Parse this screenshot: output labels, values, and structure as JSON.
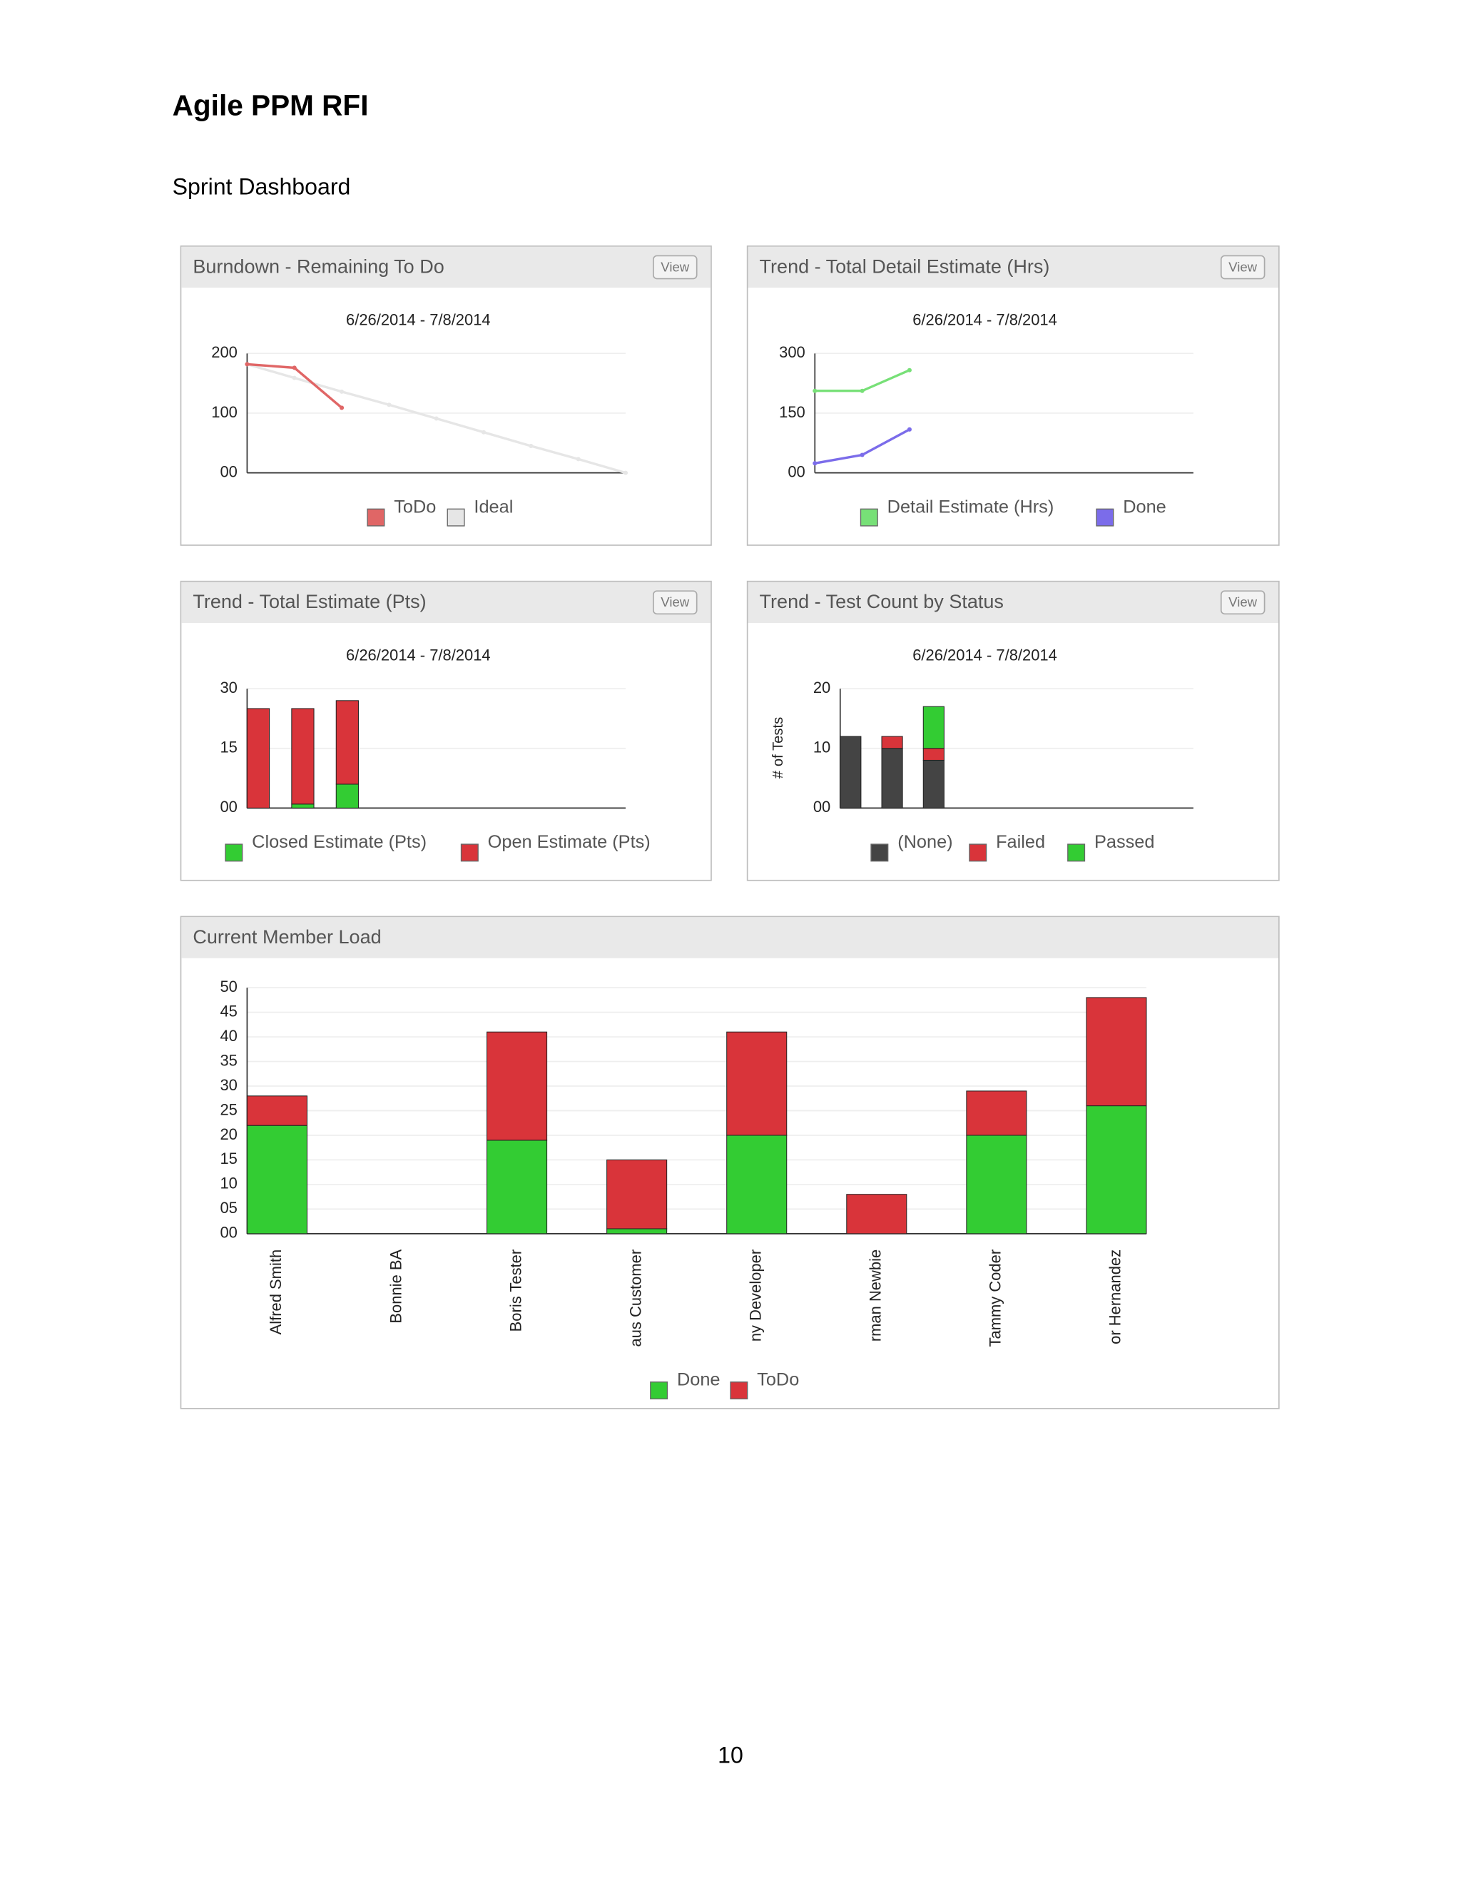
{
  "header": {
    "title": "Agile PPM RFI",
    "subtitle": "Sprint Dashboard"
  },
  "footer": {
    "page_number": "10"
  },
  "chart_data": [
    {
      "type": "line",
      "title": "Burndown - Remaining To Do",
      "button": "View",
      "subtitle": "6/26/2014 - 7/8/2014",
      "categories": [
        null,
        null,
        null,
        null,
        null,
        null,
        null,
        null,
        null
      ],
      "series": [
        {
          "name": "ToDo",
          "color": "#e06666",
          "values": [
            182,
            176,
            109,
            null,
            null,
            null,
            null,
            null,
            null
          ]
        },
        {
          "name": "Ideal",
          "color": "#e6e6e6",
          "values": [
            182,
            159,
            136,
            114,
            91,
            68,
            45,
            23,
            0
          ]
        }
      ],
      "ylim": [
        0,
        200
      ],
      "yticks": [
        {
          "value": 0,
          "label": "00"
        },
        100,
        200
      ],
      "grid": true
    },
    {
      "type": "line",
      "title": "Trend - Total Detail Estimate (Hrs)",
      "button": "View",
      "subtitle": "6/26/2014 - 7/8/2014",
      "categories": [
        null,
        null,
        null,
        null,
        null,
        null,
        null,
        null,
        null
      ],
      "series": [
        {
          "name": "Detail Estimate (Hrs)",
          "color": "#77e077",
          "values": [
            206,
            206,
            258,
            null,
            null,
            null,
            null,
            null,
            null
          ]
        },
        {
          "name": "Done",
          "color": "#7b6cea",
          "values": [
            24,
            45,
            109,
            null,
            null,
            null,
            null,
            null,
            null
          ]
        }
      ],
      "ylim": [
        0,
        300
      ],
      "yticks": [
        {
          "value": 0,
          "label": "00"
        },
        150,
        300
      ],
      "grid": true
    },
    {
      "type": "bar",
      "stacked": true,
      "title": "Trend - Total Estimate (Pts)",
      "button": "View",
      "subtitle": "6/26/2014 - 7/8/2014",
      "categories": [
        null,
        null,
        null,
        null,
        null,
        null,
        null,
        null,
        null
      ],
      "series": [
        {
          "name": "Closed Estimate (Pts)",
          "color": "#33cc33",
          "values": [
            0,
            1,
            6,
            null,
            null,
            null,
            null,
            null,
            null
          ]
        },
        {
          "name": "Open Estimate (Pts)",
          "color": "#d9343a",
          "values": [
            25,
            24,
            21,
            null,
            null,
            null,
            null,
            null,
            null
          ]
        }
      ],
      "ylim": [
        0,
        30
      ],
      "yticks": [
        {
          "value": 0,
          "label": "00"
        },
        15,
        30
      ],
      "grid": true
    },
    {
      "type": "bar",
      "stacked": true,
      "title": "Trend - Test Count by Status",
      "button": "View",
      "subtitle": "6/26/2014 - 7/8/2014",
      "ylabel": "# of Tests",
      "categories": [
        null,
        null,
        null,
        null,
        null,
        null,
        null,
        null,
        null
      ],
      "series": [
        {
          "name": "(None)",
          "color": "#444444",
          "values": [
            12,
            10,
            8,
            null,
            null,
            null,
            null,
            null,
            null
          ]
        },
        {
          "name": "Failed",
          "color": "#d9343a",
          "values": [
            0,
            2,
            2,
            null,
            null,
            null,
            null,
            null,
            null
          ]
        },
        {
          "name": "Passed",
          "color": "#33cc33",
          "values": [
            0,
            0,
            7,
            null,
            null,
            null,
            null,
            null,
            null
          ]
        }
      ],
      "ylim": [
        0,
        20
      ],
      "yticks": [
        {
          "value": 0,
          "label": "00"
        },
        10,
        20
      ],
      "grid": true
    },
    {
      "type": "bar",
      "stacked": true,
      "title": "Current Member Load",
      "categories": [
        "Alfred Smith",
        "Bonnie BA",
        "Boris Tester",
        "aus Customer",
        "ny Developer",
        "rman Newbie",
        "Tammy Coder",
        "or Hernandez"
      ],
      "series": [
        {
          "name": "Done",
          "color": "#33cc33",
          "values": [
            22,
            0,
            19,
            1,
            20,
            0,
            20,
            26
          ]
        },
        {
          "name": "ToDo",
          "color": "#d9343a",
          "values": [
            6,
            0,
            22,
            14,
            21,
            8,
            9,
            22
          ]
        }
      ],
      "ylim": [
        0,
        50
      ],
      "yticks": [
        {
          "value": 0,
          "label": "00"
        },
        {
          "value": 5,
          "label": "05"
        },
        10,
        15,
        20,
        25,
        30,
        35,
        40,
        45,
        50
      ],
      "grid": true
    }
  ]
}
